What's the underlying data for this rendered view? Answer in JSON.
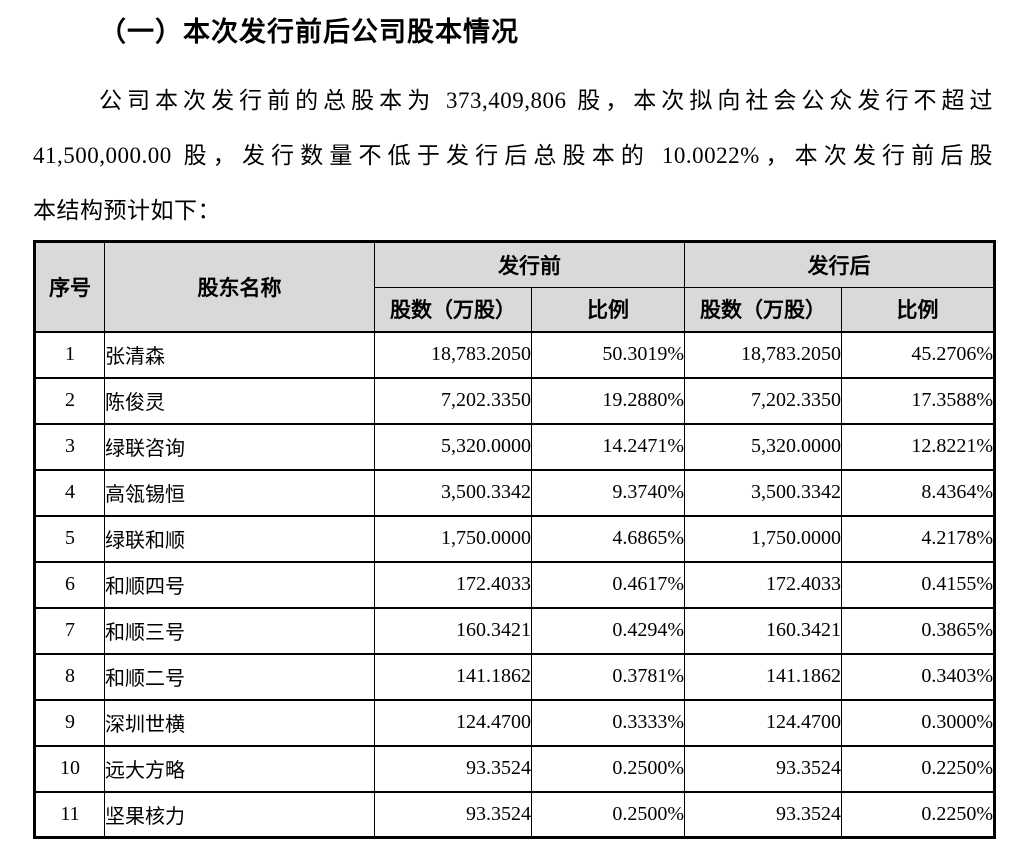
{
  "heading": {
    "text": "（一）本次发行前后公司股本情况"
  },
  "paragraph": {
    "full_text": "公司本次发行前的总股本为 373,409,806 股，本次拟向社会公众发行不超过 41,500,000.00 股，发行数量不低于发行后总股本的 10.0022%，本次发行前后股本结构预计如下：",
    "lines": [
      "公司本次发行前的总股本为 373,409,806 股，本次拟向社会公众发行不超过",
      "41,500,000.00 股，发行数量不低于发行后总股本的 10.0022%，本次发行前后股",
      "本结构预计如下："
    ]
  },
  "table": {
    "style": {
      "header_bg": "#d9d9d9",
      "border_color": "#000000"
    },
    "header": {
      "serial": "序号",
      "shareholder": "股东名称",
      "before_group": "发行前",
      "after_group": "发行后",
      "shares_label": "股数（万股）",
      "ratio_label": "比例"
    },
    "rows": [
      {
        "no": "1",
        "name": "张清森",
        "before_shares": "18,783.2050",
        "before_ratio": "50.3019%",
        "after_shares": "18,783.2050",
        "after_ratio": "45.2706%"
      },
      {
        "no": "2",
        "name": "陈俊灵",
        "before_shares": "7,202.3350",
        "before_ratio": "19.2880%",
        "after_shares": "7,202.3350",
        "after_ratio": "17.3588%"
      },
      {
        "no": "3",
        "name": "绿联咨询",
        "before_shares": "5,320.0000",
        "before_ratio": "14.2471%",
        "after_shares": "5,320.0000",
        "after_ratio": "12.8221%"
      },
      {
        "no": "4",
        "name": "高瓴锡恒",
        "before_shares": "3,500.3342",
        "before_ratio": "9.3740%",
        "after_shares": "3,500.3342",
        "after_ratio": "8.4364%"
      },
      {
        "no": "5",
        "name": "绿联和顺",
        "before_shares": "1,750.0000",
        "before_ratio": "4.6865%",
        "after_shares": "1,750.0000",
        "after_ratio": "4.2178%"
      },
      {
        "no": "6",
        "name": "和顺四号",
        "before_shares": "172.4033",
        "before_ratio": "0.4617%",
        "after_shares": "172.4033",
        "after_ratio": "0.4155%"
      },
      {
        "no": "7",
        "name": "和顺三号",
        "before_shares": "160.3421",
        "before_ratio": "0.4294%",
        "after_shares": "160.3421",
        "after_ratio": "0.3865%"
      },
      {
        "no": "8",
        "name": "和顺二号",
        "before_shares": "141.1862",
        "before_ratio": "0.3781%",
        "after_shares": "141.1862",
        "after_ratio": "0.3403%"
      },
      {
        "no": "9",
        "name": "深圳世横",
        "before_shares": "124.4700",
        "before_ratio": "0.3333%",
        "after_shares": "124.4700",
        "after_ratio": "0.3000%"
      },
      {
        "no": "10",
        "name": "远大方略",
        "before_shares": "93.3524",
        "before_ratio": "0.2500%",
        "after_shares": "93.3524",
        "after_ratio": "0.2250%"
      },
      {
        "no": "11",
        "name": "坚果核力",
        "before_shares": "93.3524",
        "before_ratio": "0.2500%",
        "after_shares": "93.3524",
        "after_ratio": "0.2250%"
      }
    ]
  }
}
